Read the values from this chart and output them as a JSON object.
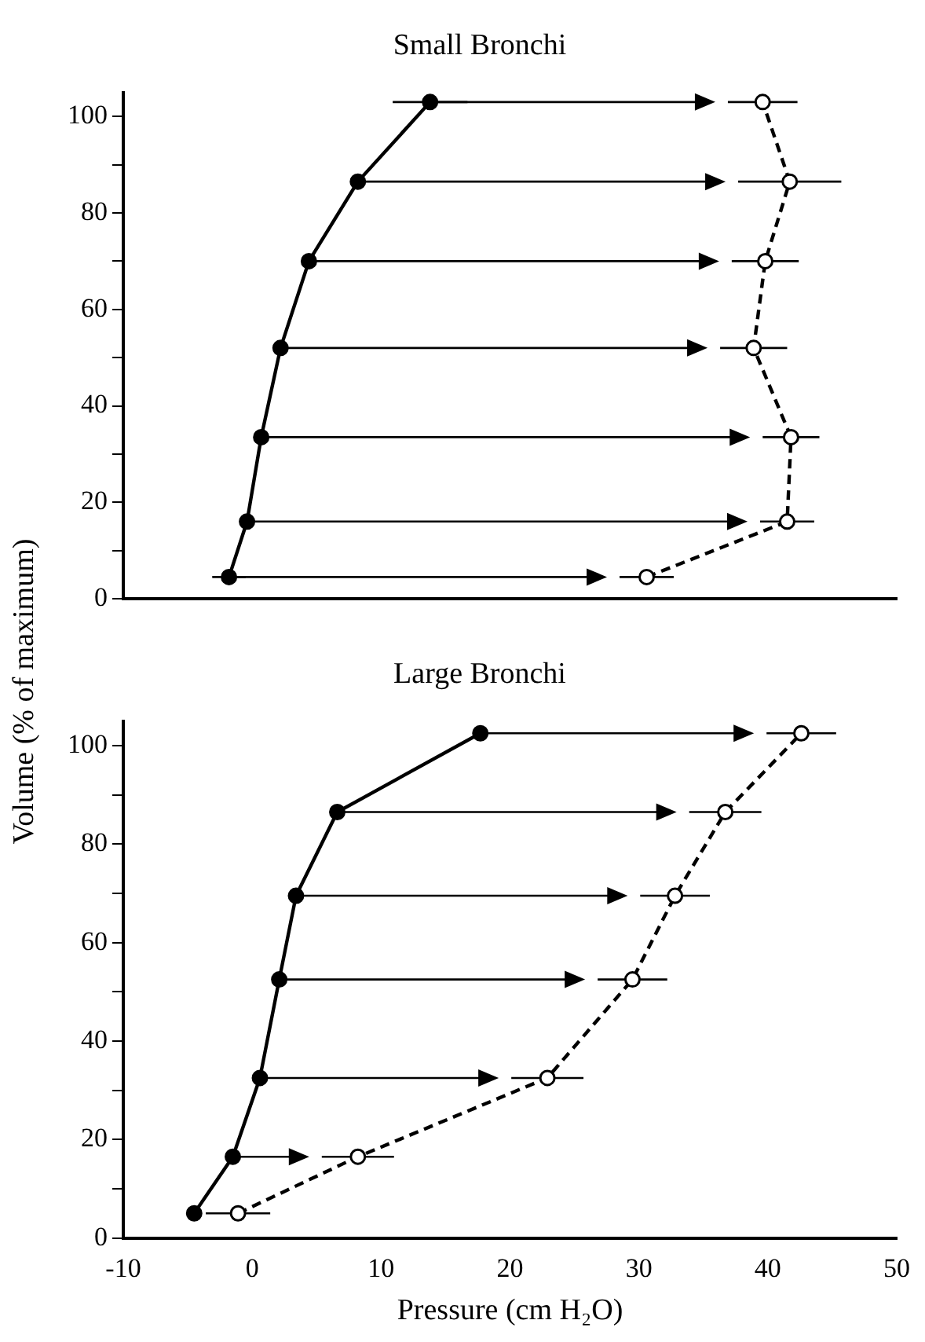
{
  "chart_data": [
    {
      "type": "line",
      "title": "Small Bronchi",
      "ylabel": "Volume (% of maximum)",
      "xlim": [
        -10,
        50
      ],
      "xticks": [
        -10,
        0,
        10,
        20,
        30,
        40,
        50
      ],
      "ylim": [
        0,
        105
      ],
      "yticks": [
        0,
        {
          "value": 10,
          "label": null
        },
        20,
        {
          "value": 30,
          "label": null
        },
        40,
        {
          "value": 50,
          "label": null
        },
        60,
        {
          "value": 70,
          "label": null
        },
        80,
        {
          "value": 90,
          "label": null
        },
        100
      ],
      "tick_labels": "y",
      "grid": false,
      "legend": false,
      "marker": "circle",
      "series": [
        {
          "color": "#000000",
          "line_style": "solid",
          "x": [
            -1.8,
            -0.4,
            0.7,
            2.2,
            4.4,
            8.2,
            13.8
          ],
          "values": [
            4.5,
            16,
            33.5,
            52,
            70,
            86.5,
            103
          ],
          "xerrors": [
            1.3,
            null,
            null,
            null,
            null,
            null,
            2.9
          ]
        },
        {
          "color": "#000000",
          "line_style": "dashed",
          "x": [
            30.6,
            41.5,
            41.8,
            38.9,
            39.8,
            41.7,
            39.6
          ],
          "values": [
            4.5,
            16,
            33.5,
            52,
            70,
            86.5,
            103
          ],
          "xerrors": [
            2.1,
            2.1,
            2.2,
            2.6,
            2.6,
            4,
            2.7
          ]
        }
      ]
    },
    {
      "type": "line",
      "title": "Large Bronchi",
      "xlabel": "Pressure (cm H₂O)",
      "xlim": [
        -10,
        50
      ],
      "xticks": [
        -10,
        0,
        10,
        20,
        30,
        40,
        50
      ],
      "ylim": [
        0,
        105
      ],
      "yticks": [
        0,
        {
          "value": 10,
          "label": null
        },
        20,
        {
          "value": 30,
          "label": null
        },
        40,
        {
          "value": 50,
          "label": null
        },
        60,
        {
          "value": 70,
          "label": null
        },
        80,
        {
          "value": 90,
          "label": null
        },
        100
      ],
      "grid": false,
      "legend": false,
      "marker": "circle",
      "series": [
        {
          "color": "#000000",
          "line_style": "solid",
          "x": [
            -4.5,
            -1.5,
            0.6,
            2.1,
            3.4,
            6.6,
            17.7
          ],
          "values": [
            5,
            16.5,
            32.5,
            52.5,
            69.5,
            86.5,
            102.5
          ]
        },
        {
          "color": "#000000",
          "line_style": "dashed",
          "x": [
            -1.1,
            8.2,
            22.9,
            29.5,
            32.8,
            36.7,
            42.6
          ],
          "values": [
            5,
            16.5,
            32.5,
            52.5,
            69.5,
            86.5,
            102.5
          ],
          "xerrors": [
            2.5,
            2.8,
            2.8,
            2.7,
            2.7,
            2.8,
            2.7
          ]
        }
      ]
    }
  ]
}
